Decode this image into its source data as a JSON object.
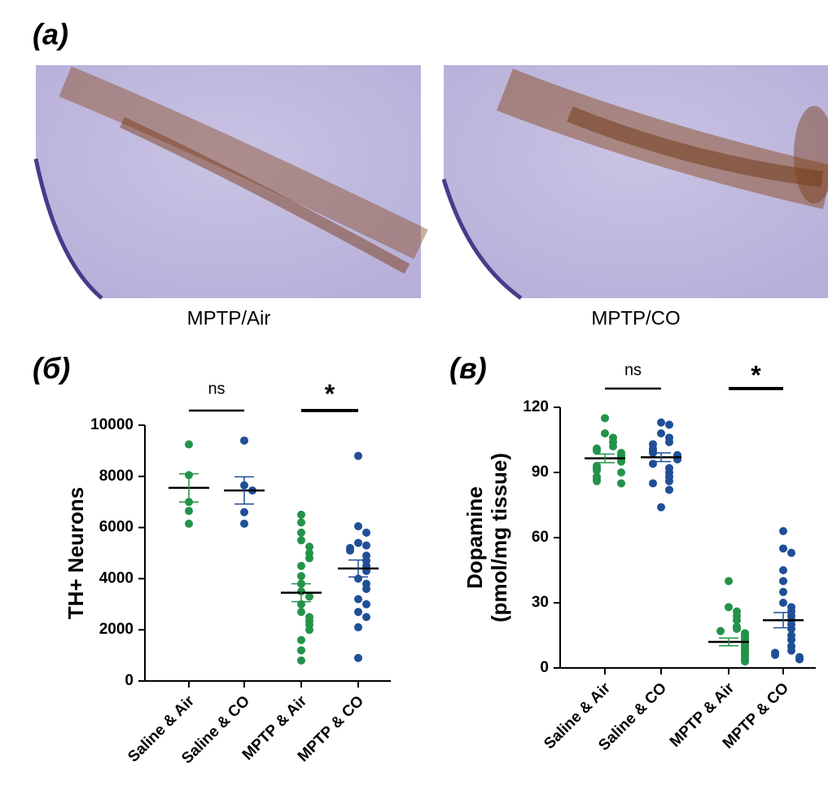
{
  "panel_labels": [
    "(а)",
    "(б)",
    "(в)"
  ],
  "image_captions": [
    "MPTP/Air",
    "MPTP/CO"
  ],
  "chart_data": [
    {
      "type": "strip",
      "ylabel": [
        "TH+ Neurons"
      ],
      "categories": [
        "Saline & Air",
        "Saline & CO",
        "MPTP & Air",
        "MPTP & CO"
      ],
      "colors": [
        "#23934a",
        "#1f4f96",
        "#23934a",
        "#1f4f96"
      ],
      "points": [
        [
          9250,
          8050,
          7000,
          6650,
          6150
        ],
        [
          9400,
          7650,
          7450,
          6600,
          6150
        ],
        [
          6500,
          6200,
          5800,
          5500,
          5250,
          5000,
          4800,
          4500,
          4100,
          3800,
          3500,
          3300,
          3000,
          2700,
          2500,
          2350,
          2200,
          2000,
          1600,
          1200,
          800
        ],
        [
          8800,
          6050,
          5800,
          5400,
          5300,
          5200,
          5100,
          4900,
          4700,
          4500,
          4300,
          4000,
          3800,
          3600,
          3200,
          3000,
          2700,
          2500,
          2100,
          900
        ]
      ],
      "means": [
        7550,
        7450,
        3450,
        4400
      ],
      "sems": [
        550,
        530,
        350,
        330
      ],
      "annotations": [
        "ns",
        "*"
      ],
      "ylim": [
        0,
        10000
      ],
      "yticks": [
        0,
        2000,
        4000,
        6000,
        8000,
        10000
      ]
    },
    {
      "type": "strip",
      "ylabel": [
        "Dopamine",
        "(pmol/mg tissue)"
      ],
      "categories": [
        "Saline & Air",
        "Saline & CO",
        "MPTP & Air",
        "MPTP & CO"
      ],
      "colors": [
        "#23934a",
        "#1f4f96",
        "#23934a",
        "#1f4f96"
      ],
      "points": [
        [
          115,
          108,
          106,
          104,
          102,
          101,
          100,
          99,
          98,
          97,
          96,
          95,
          93,
          92,
          91,
          90,
          88,
          87,
          86,
          85
        ],
        [
          113,
          112,
          108,
          106,
          104,
          103,
          101,
          100,
          99,
          98,
          97,
          96,
          94,
          92,
          90,
          88,
          86,
          85,
          82,
          74
        ],
        [
          40,
          28,
          26,
          24,
          22,
          19,
          18,
          17,
          16,
          15,
          14,
          13,
          12,
          11,
          10,
          9,
          8,
          7,
          6,
          5,
          4,
          3
        ],
        [
          63,
          55,
          53,
          45,
          40,
          35,
          30,
          28,
          26,
          24,
          22,
          20,
          18,
          15,
          13,
          10,
          8,
          7,
          6,
          5,
          4
        ]
      ],
      "means": [
        96.5,
        97,
        12,
        22
      ],
      "sems": [
        2,
        2,
        1.8,
        3.5
      ],
      "annotations": [
        "ns",
        "*"
      ],
      "ylim": [
        0,
        120
      ],
      "yticks": [
        0,
        30,
        60,
        90,
        120
      ]
    }
  ]
}
